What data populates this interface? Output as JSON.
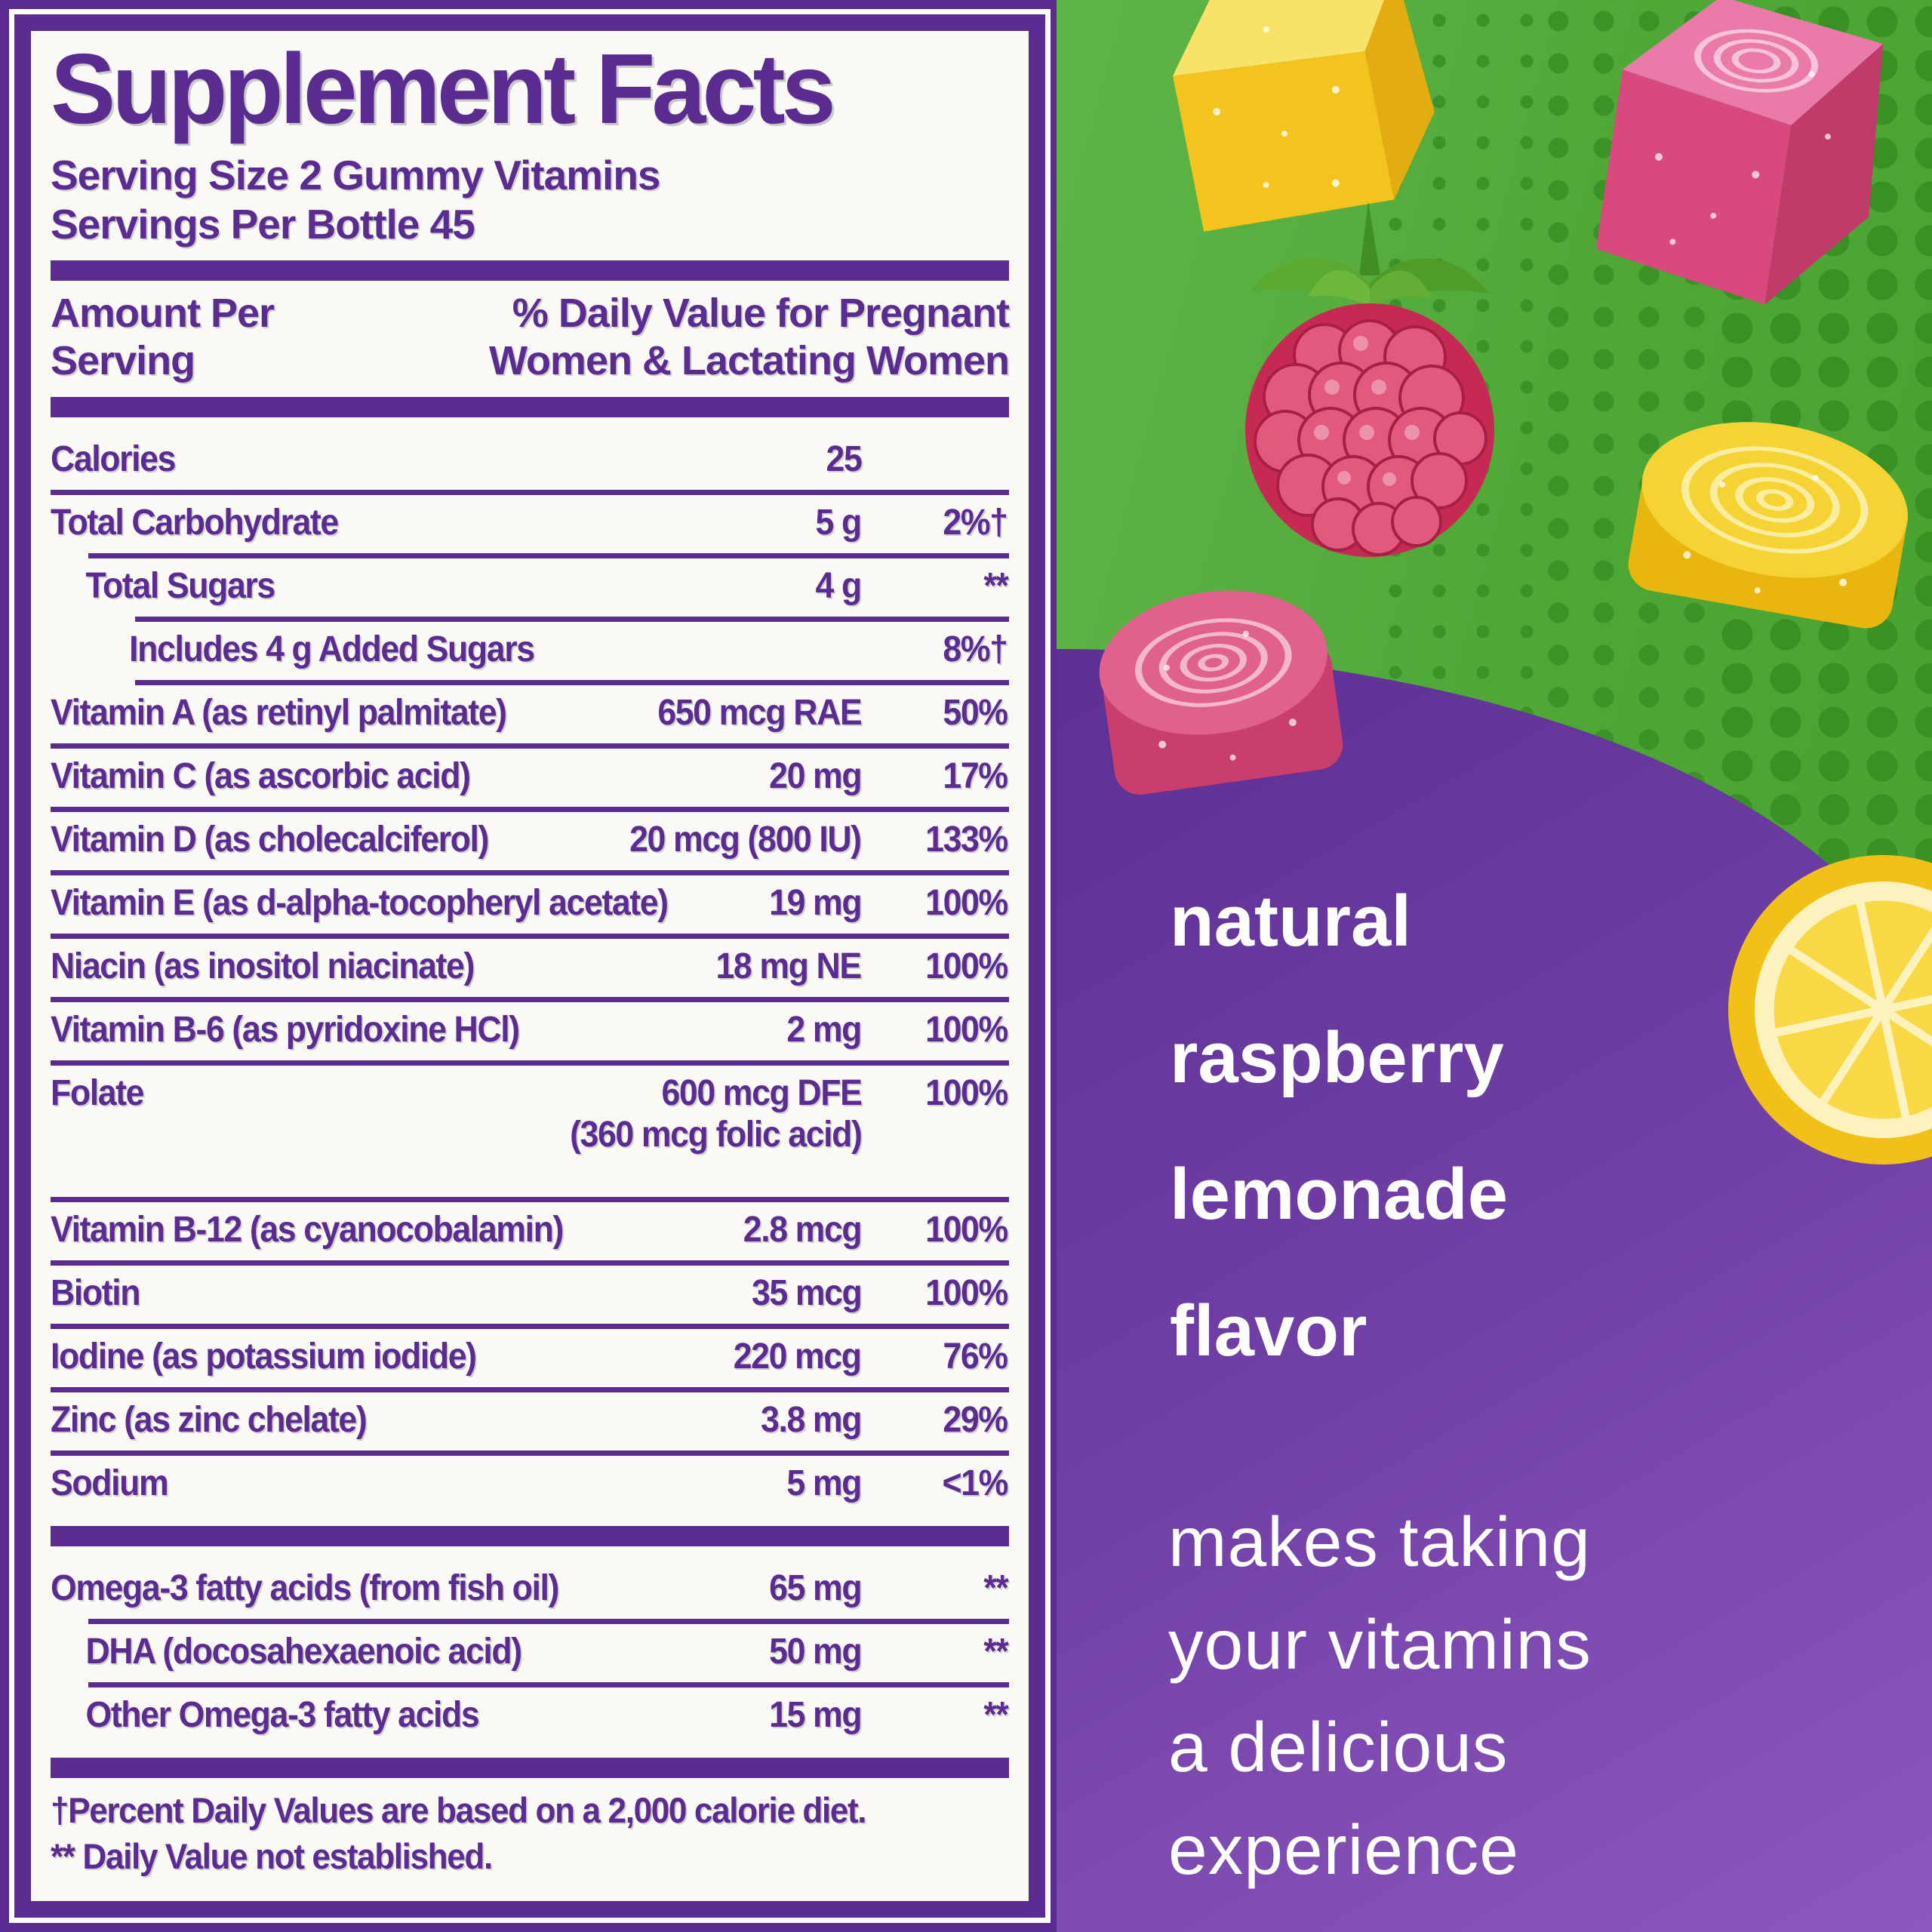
{
  "panel": {
    "title": "Supplement Facts",
    "serving_size": "Serving Size 2 Gummy Vitamins",
    "servings_per_bottle": "Servings Per Bottle 45",
    "header": {
      "amount_line1": "Amount Per",
      "amount_line2": "Serving",
      "dv_line1": "% Daily Value for Pregnant",
      "dv_line2": "Women & Lactating Women"
    },
    "rows": [
      {
        "label": "Calories",
        "amount": "25",
        "dv": "",
        "indent": 0,
        "bar_before": true
      },
      {
        "label": "Total Carbohydrate",
        "amount": "5 g",
        "dv": "2%†",
        "indent": 0
      },
      {
        "label": "Total Sugars",
        "amount": "4 g",
        "dv": "**",
        "indent": 1
      },
      {
        "label": "Includes 4 g Added Sugars",
        "amount": "",
        "dv": "8%†",
        "indent": 2
      },
      {
        "label": "Vitamin A (as retinyl palmitate)",
        "amount": "650 mcg RAE",
        "dv": "50%",
        "indent": 0
      },
      {
        "label": "Vitamin C (as ascorbic acid)",
        "amount": "20 mg",
        "dv": "17%",
        "indent": 0
      },
      {
        "label": "Vitamin D (as cholecalciferol)",
        "amount": "20 mcg (800 IU)",
        "dv": "133%",
        "indent": 0
      },
      {
        "label": "Vitamin E (as d-alpha-tocopheryl acetate)",
        "amount": "19 mg",
        "dv": "100%",
        "indent": 0
      },
      {
        "label": "Niacin (as inositol niacinate)",
        "amount": "18 mg NE",
        "dv": "100%",
        "indent": 0
      },
      {
        "label": "Vitamin B-6 (as pyridoxine HCl)",
        "amount": "2 mg",
        "dv": "100%",
        "indent": 0
      },
      {
        "label": "Folate",
        "amount": "600 mcg DFE",
        "amount2": "(360 mcg folic acid)",
        "dv": "100%",
        "indent": 0
      },
      {
        "label": "Vitamin B-12 (as cyanocobalamin)",
        "amount": "2.8 mcg",
        "dv": "100%",
        "indent": 0
      },
      {
        "label": "Biotin",
        "amount": "35 mcg",
        "dv": "100%",
        "indent": 0
      },
      {
        "label": "Iodine (as potassium iodide)",
        "amount": "220 mcg",
        "dv": "76%",
        "indent": 0
      },
      {
        "label": "Zinc (as zinc chelate)",
        "amount": "3.8 mg",
        "dv": "29%",
        "indent": 0
      },
      {
        "label": "Sodium",
        "amount": "5 mg",
        "dv": "<1%",
        "indent": 0
      },
      {
        "label": "Omega-3 fatty acids (from fish oil)",
        "amount": "65 mg",
        "dv": "**",
        "indent": 0,
        "bar_before": true
      },
      {
        "label": "DHA (docosahexaenoic acid)",
        "amount": "50 mg",
        "dv": "**",
        "indent": 1
      },
      {
        "label": "Other Omega-3 fatty acids",
        "amount": "15 mg",
        "dv": "**",
        "indent": 1
      }
    ],
    "footnotes": [
      "†Percent Daily Values are based on a 2,000 calorie diet.",
      "** Daily Value not established."
    ]
  },
  "art": {
    "flavor_lines": [
      "natural",
      "raspberry",
      "lemonade",
      "flavor"
    ],
    "tagline_lines": [
      "makes taking",
      "your vitamins",
      "a delicious",
      "experience"
    ],
    "fruit_icons": [
      "gummy-cube-yellow",
      "gummy-cube-pink-swirl",
      "raspberry",
      "gummy-swirl-yellow",
      "gummy-swirl-pink",
      "lemon-slice"
    ]
  },
  "colors": {
    "label_purple": "#5b2c90",
    "panel_background": "#faf9f6",
    "green_background": "#4ea836",
    "dot_green": "#3a9126",
    "blob_purple": "#6e3ea5",
    "text_white": "#ffffff",
    "gummy_yellow": "#f2c41d",
    "gummy_pink": "#d84a7e",
    "raspberry_red": "#d63a63",
    "lemon_yellow": "#f2c117"
  }
}
